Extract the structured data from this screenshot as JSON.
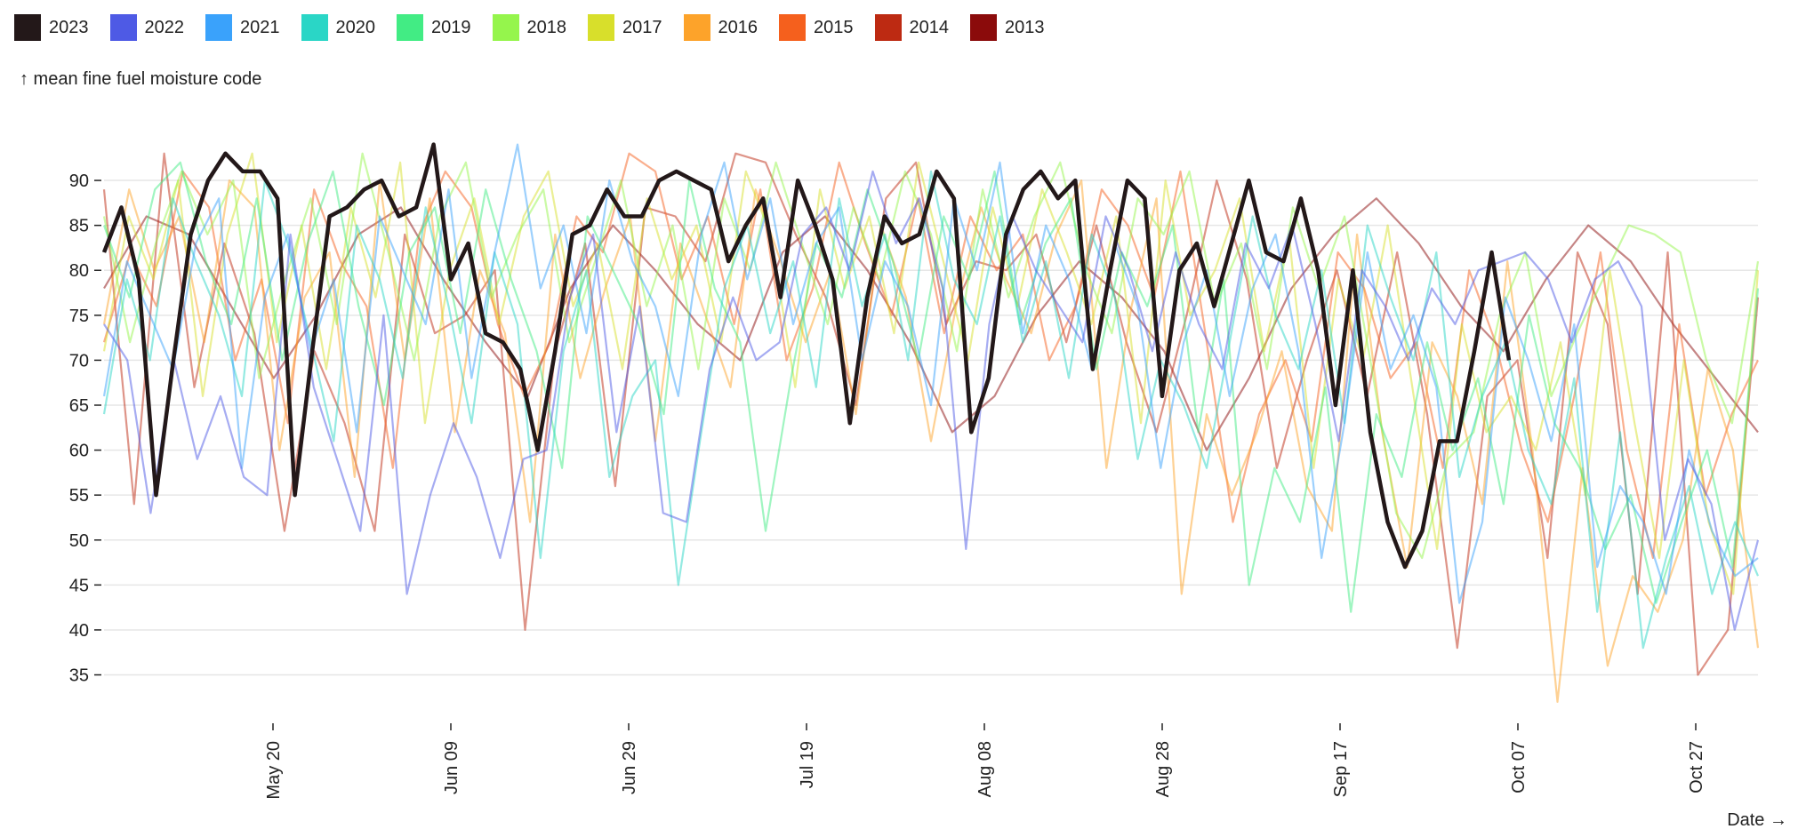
{
  "chart_data": {
    "type": "line",
    "title": "",
    "ylabel": "↑ mean fine fuel moisture code",
    "xlabel": "Date →",
    "ylim": [
      31,
      99
    ],
    "yticks": [
      35,
      40,
      45,
      50,
      55,
      60,
      65,
      70,
      75,
      80,
      85,
      90
    ],
    "x_start": "May 01",
    "x_end": "Oct 29",
    "xticks": [
      {
        "label": "May 20",
        "day": 19
      },
      {
        "label": "Jun 09",
        "day": 39
      },
      {
        "label": "Jun 29",
        "day": 59
      },
      {
        "label": "Jul 19",
        "day": 79
      },
      {
        "label": "Aug 08",
        "day": 99
      },
      {
        "label": "Aug 28",
        "day": 119
      },
      {
        "label": "Sep 17",
        "day": 139
      },
      {
        "label": "Oct 07",
        "day": 159
      },
      {
        "label": "Oct 27",
        "day": 179
      }
    ],
    "grid": true,
    "legend_position": "top-left",
    "series": [
      {
        "name": "2013",
        "color": "#8b0b0b",
        "values": [
          78,
          86,
          84,
          76,
          68,
          75,
          84,
          87,
          79,
          72,
          66,
          78,
          85,
          80,
          74,
          70,
          82,
          86,
          80,
          72,
          62,
          66,
          75,
          81,
          77,
          71,
          60,
          68,
          78,
          84,
          88,
          83,
          76,
          71,
          79,
          85,
          81,
          74,
          68,
          62
        ]
      },
      {
        "name": "2014",
        "color": "#bd2a12",
        "values": [
          89,
          54,
          93,
          67,
          83,
          73,
          51,
          71,
          63,
          51,
          84,
          73,
          75,
          80,
          40,
          71,
          83,
          56,
          87,
          86,
          81,
          93,
          92,
          84,
          77,
          65,
          88,
          92,
          74,
          81,
          80,
          84,
          72,
          85,
          72,
          62,
          75,
          90,
          79,
          58,
          70,
          80,
          66,
          82,
          64,
          38,
          66,
          70,
          48,
          82,
          74,
          44,
          82,
          35,
          40,
          77
        ]
      },
      {
        "name": "2015",
        "color": "#f5601d",
        "values": [
          72,
          82,
          76,
          91,
          87,
          70,
          79,
          63,
          89,
          81,
          76,
          58,
          84,
          91,
          87,
          74,
          66,
          72,
          86,
          82,
          93,
          91,
          79,
          86,
          74,
          89,
          70,
          78,
          92,
          83,
          75,
          88,
          73,
          86,
          80,
          84,
          70,
          76,
          89,
          85,
          77,
          91,
          72,
          52,
          64,
          70,
          61,
          82,
          78,
          68,
          72,
          58,
          80,
          72,
          60,
          52,
          66,
          82,
          60,
          48,
          74,
          55,
          64,
          70
        ]
      },
      {
        "name": "2016",
        "color": "#fda32a",
        "values": [
          74,
          89,
          80,
          86,
          72,
          90,
          87,
          60,
          77,
          82,
          57,
          90,
          70,
          88,
          62,
          80,
          73,
          52,
          84,
          68,
          78,
          86,
          61,
          83,
          75,
          67,
          89,
          81,
          72,
          80,
          64,
          85,
          77,
          61,
          76,
          87,
          79,
          73,
          84,
          90,
          58,
          76,
          88,
          44,
          64,
          55,
          62,
          71,
          56,
          51,
          84,
          62,
          47,
          72,
          66,
          54,
          81,
          60,
          32,
          58,
          36,
          46,
          42,
          50,
          69,
          60,
          38
        ]
      },
      {
        "name": "2017",
        "color": "#d8df2b",
        "values": [
          71,
          86,
          79,
          90,
          66,
          84,
          93,
          72,
          85,
          69,
          87,
          77,
          92,
          63,
          80,
          88,
          74,
          86,
          91,
          76,
          83,
          69,
          88,
          79,
          85,
          72,
          91,
          84,
          67,
          89,
          78,
          86,
          73,
          92,
          81,
          70,
          87,
          76,
          89,
          82,
          74,
          86,
          63,
          90,
          75,
          80,
          88,
          71,
          84,
          58,
          79,
          70,
          85,
          67,
          49,
          74,
          62,
          66,
          60,
          72,
          55,
          80,
          63,
          48,
          70,
          52,
          44,
          80
        ]
      },
      {
        "name": "2018",
        "color": "#95f54c",
        "values": [
          86,
          72,
          83,
          91,
          84,
          90,
          68,
          79,
          88,
          74,
          93,
          82,
          70,
          86,
          92,
          77,
          84,
          89,
          72,
          81,
          90,
          76,
          85,
          69,
          88,
          80,
          92,
          83,
          74,
          87,
          79,
          91,
          84,
          71,
          89,
          77,
          86,
          92,
          80,
          73,
          88,
          84,
          91,
          76,
          83,
          69,
          87,
          78,
          86,
          70,
          53,
          48,
          59,
          62,
          75,
          82,
          66,
          73,
          79,
          85,
          84,
          82,
          70,
          63,
          81
        ]
      },
      {
        "name": "2019",
        "color": "#42ec84",
        "values": [
          85,
          77,
          89,
          92,
          81,
          74,
          88,
          70,
          83,
          91,
          76,
          65,
          82,
          87,
          73,
          89,
          79,
          71,
          58,
          86,
          80,
          74,
          64,
          90,
          78,
          72,
          51,
          68,
          83,
          77,
          89,
          81,
          70,
          86,
          79,
          91,
          74,
          83,
          88,
          69,
          82,
          76,
          85,
          62,
          79,
          45,
          58,
          52,
          67,
          42,
          64,
          57,
          72,
          60,
          68,
          54,
          75,
          63,
          58,
          49,
          55,
          43,
          52,
          60,
          47,
          78
        ]
      },
      {
        "name": "2020",
        "color": "#2ad6c6",
        "values": [
          64,
          79,
          70,
          88,
          81,
          75,
          66,
          90,
          83,
          72,
          61,
          85,
          79,
          68,
          87,
          76,
          63,
          82,
          74,
          48,
          71,
          80,
          57,
          66,
          70,
          45,
          62,
          78,
          85,
          73,
          81,
          67,
          88,
          76,
          84,
          70,
          91,
          79,
          74,
          86,
          72,
          81,
          68,
          84,
          77,
          59,
          70,
          65,
          58,
          72,
          86,
          75,
          69,
          80,
          63,
          85,
          77,
          70,
          82,
          57,
          66,
          72,
          60,
          54,
          68,
          42,
          62,
          38,
          48,
          56,
          44,
          52,
          46
        ]
      },
      {
        "name": "2021",
        "color": "#3aa2fb",
        "values": [
          66,
          81,
          75,
          69,
          83,
          88,
          58,
          77,
          84,
          71,
          79,
          62,
          86,
          80,
          74,
          89,
          68,
          82,
          94,
          78,
          85,
          73,
          90,
          81,
          76,
          66,
          84,
          92,
          79,
          88,
          74,
          83,
          87,
          70,
          81,
          76,
          65,
          88,
          80,
          92,
          73,
          85,
          79,
          69,
          83,
          76,
          58,
          72,
          80,
          66,
          78,
          84,
          71,
          48,
          63,
          82,
          69,
          75,
          67,
          43,
          52,
          77,
          70,
          61,
          74,
          47,
          56,
          52,
          44,
          60,
          51,
          46,
          48
        ]
      },
      {
        "name": "2022",
        "color": "#4e5ae5",
        "values": [
          74,
          70,
          53,
          70,
          59,
          66,
          57,
          55,
          84,
          67,
          59,
          51,
          75,
          44,
          55,
          63,
          57,
          48,
          59,
          60,
          77,
          84,
          62,
          76,
          53,
          52,
          69,
          77,
          70,
          72,
          84,
          87,
          80,
          91,
          83,
          88,
          78,
          49,
          74,
          86,
          80,
          76,
          72,
          86,
          80,
          71,
          82,
          74,
          69,
          83,
          78,
          85,
          74,
          61,
          80,
          76,
          70,
          78,
          74,
          80,
          81,
          82,
          79,
          72,
          79,
          81,
          76,
          50,
          59,
          54,
          40,
          50
        ]
      },
      {
        "name": "2023",
        "color": "#231819",
        "values": [
          82,
          87,
          79,
          55,
          70,
          84,
          90,
          93,
          91,
          91,
          88,
          55,
          71,
          86,
          87,
          89,
          90,
          86,
          87,
          94,
          79,
          83,
          73,
          72,
          69,
          60,
          71,
          84,
          85,
          89,
          86,
          86,
          90,
          91,
          90,
          89,
          81,
          85,
          88,
          77,
          90,
          85,
          79,
          63,
          77,
          86,
          83,
          84,
          91,
          88,
          62,
          68,
          84,
          89,
          91,
          88,
          90,
          69,
          80,
          90,
          88,
          66,
          80,
          83,
          76,
          83,
          90,
          82,
          81,
          88,
          80,
          65,
          80,
          62,
          52,
          47,
          51,
          61,
          61,
          71,
          82,
          70
        ]
      }
    ]
  }
}
